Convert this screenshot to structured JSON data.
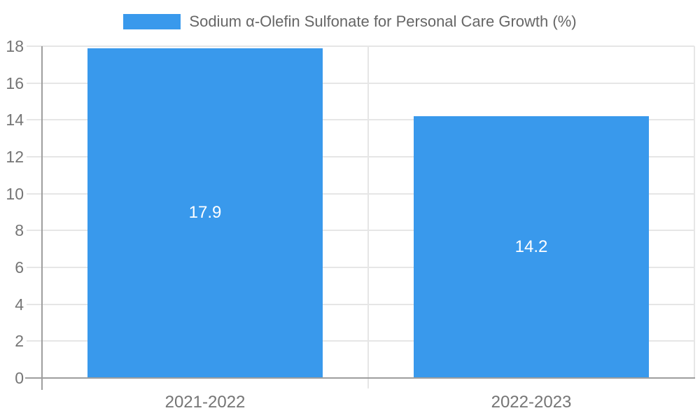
{
  "legend": {
    "label": "Sodium α-Olefin Sulfonate for Personal Care Growth (%)"
  },
  "chart_data": {
    "type": "bar",
    "series_name": "Sodium α-Olefin Sulfonate for Personal Care Growth (%)",
    "categories": [
      "2021-2022",
      "2022-2023"
    ],
    "values": [
      17.9,
      14.2
    ],
    "value_labels": [
      "17.9",
      "14.2"
    ],
    "y_ticks": [
      0,
      2,
      4,
      6,
      8,
      10,
      12,
      14,
      16,
      18
    ],
    "ylim": [
      0,
      18
    ],
    "grid": true,
    "legend_position": "top",
    "colors": {
      "bar": "#3999EC",
      "grid": "#E6E6E6",
      "axis": "#9E9E9E",
      "tick_label": "#757575",
      "legend_text": "#666666",
      "value_label": "#FFFFFF",
      "background": "#FFFFFF"
    }
  }
}
